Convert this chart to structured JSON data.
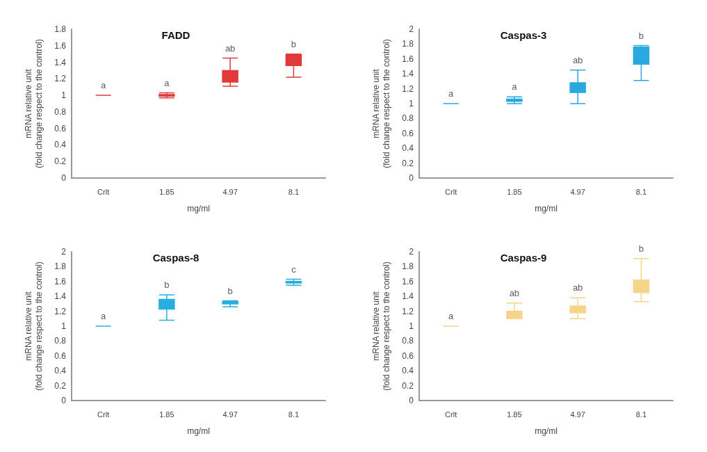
{
  "chart_data": [
    {
      "type": "box",
      "title": "FADD",
      "xlabel": "mg/ml",
      "ylabel": "mRNA relative unit\n(fold change respect to the control)",
      "categories": [
        "Crlt",
        "1.85",
        "4.97",
        "8.1"
      ],
      "ylim": [
        0,
        1.8
      ],
      "yticks": [
        0,
        0.2,
        0.4,
        0.6,
        0.8,
        1,
        1.2,
        1.4,
        1.6,
        1.8
      ],
      "grid": false,
      "series": [
        {
          "color": "#e03a3a",
          "boxes": [
            {
              "low": 1,
              "q1": 1,
              "median": 1,
              "q3": 1,
              "high": 1
            },
            {
              "low": 0.97,
              "q1": 0.99,
              "median": 1.0,
              "q3": 1.01,
              "high": 1.03
            },
            {
              "low": 1.11,
              "q1": 1.16,
              "median": 1.2,
              "q3": 1.3,
              "high": 1.45
            },
            {
              "low": 1.22,
              "q1": 1.36,
              "median": 1.42,
              "q3": 1.49,
              "high": 1.5
            }
          ]
        }
      ],
      "annotations": [
        "a",
        "a",
        "ab",
        "b"
      ]
    },
    {
      "type": "box",
      "title": "Caspas-3",
      "xlabel": "mg/ml",
      "ylabel": "mRNA relative unit\n(fold change respect to the control)",
      "categories": [
        "Crlt",
        "1.85",
        "4.97",
        "8.1"
      ],
      "ylim": [
        0,
        2
      ],
      "yticks": [
        0,
        0.2,
        0.4,
        0.6,
        0.8,
        1,
        1.2,
        1.4,
        1.6,
        1.8,
        2
      ],
      "grid": false,
      "series": [
        {
          "color": "#2aa8e0",
          "boxes": [
            {
              "low": 1,
              "q1": 1,
              "median": 1,
              "q3": 1,
              "high": 1
            },
            {
              "low": 1.0,
              "q1": 1.03,
              "median": 1.05,
              "q3": 1.06,
              "high": 1.09
            },
            {
              "low": 1.0,
              "q1": 1.15,
              "median": 1.21,
              "q3": 1.28,
              "high": 1.45
            },
            {
              "low": 1.31,
              "q1": 1.53,
              "median": 1.68,
              "q3": 1.76,
              "high": 1.78
            }
          ]
        }
      ],
      "annotations": [
        "a",
        "a",
        "ab",
        "b"
      ]
    },
    {
      "type": "box",
      "title": "Caspas-8",
      "xlabel": "mg/ml",
      "ylabel": "mRNA relative unit\n(fold change respect to the control)",
      "categories": [
        "Crlt",
        "1.85",
        "4.97",
        "8.1"
      ],
      "ylim": [
        0,
        2
      ],
      "yticks": [
        0,
        0.2,
        0.4,
        0.6,
        0.8,
        1,
        1.2,
        1.4,
        1.6,
        1.8,
        2
      ],
      "grid": false,
      "series": [
        {
          "color": "#2aaee0",
          "boxes": [
            {
              "low": 1,
              "q1": 1,
              "median": 1,
              "q3": 1,
              "high": 1
            },
            {
              "low": 1.08,
              "q1": 1.23,
              "median": 1.3,
              "q3": 1.36,
              "high": 1.42
            },
            {
              "low": 1.26,
              "q1": 1.3,
              "median": 1.32,
              "q3": 1.33,
              "high": 1.34
            },
            {
              "low": 1.55,
              "q1": 1.58,
              "median": 1.59,
              "q3": 1.6,
              "high": 1.63
            }
          ]
        }
      ],
      "annotations": [
        "a",
        "b",
        "b",
        "c"
      ]
    },
    {
      "type": "box",
      "title": "Caspas-9",
      "xlabel": "mg/ml",
      "ylabel": "mRNA relative unit\n(fold change respect to the control)",
      "categories": [
        "Crlt",
        "1.85",
        "4.97",
        "8.1"
      ],
      "ylim": [
        0,
        2
      ],
      "yticks": [
        0,
        0.2,
        0.4,
        0.6,
        0.8,
        1,
        1.2,
        1.4,
        1.6,
        1.8,
        2
      ],
      "grid": false,
      "series": [
        {
          "color": "#f5d58a",
          "boxes": [
            {
              "low": 1,
              "q1": 1,
              "median": 1,
              "q3": 1,
              "high": 1
            },
            {
              "low": 1.1,
              "q1": 1.1,
              "median": 1.12,
              "q3": 1.2,
              "high": 1.31
            },
            {
              "low": 1.1,
              "q1": 1.18,
              "median": 1.22,
              "q3": 1.27,
              "high": 1.38
            },
            {
              "low": 1.33,
              "q1": 1.45,
              "median": 1.5,
              "q3": 1.62,
              "high": 1.91
            }
          ]
        }
      ],
      "annotations": [
        "a",
        "ab",
        "ab",
        "b"
      ]
    }
  ]
}
